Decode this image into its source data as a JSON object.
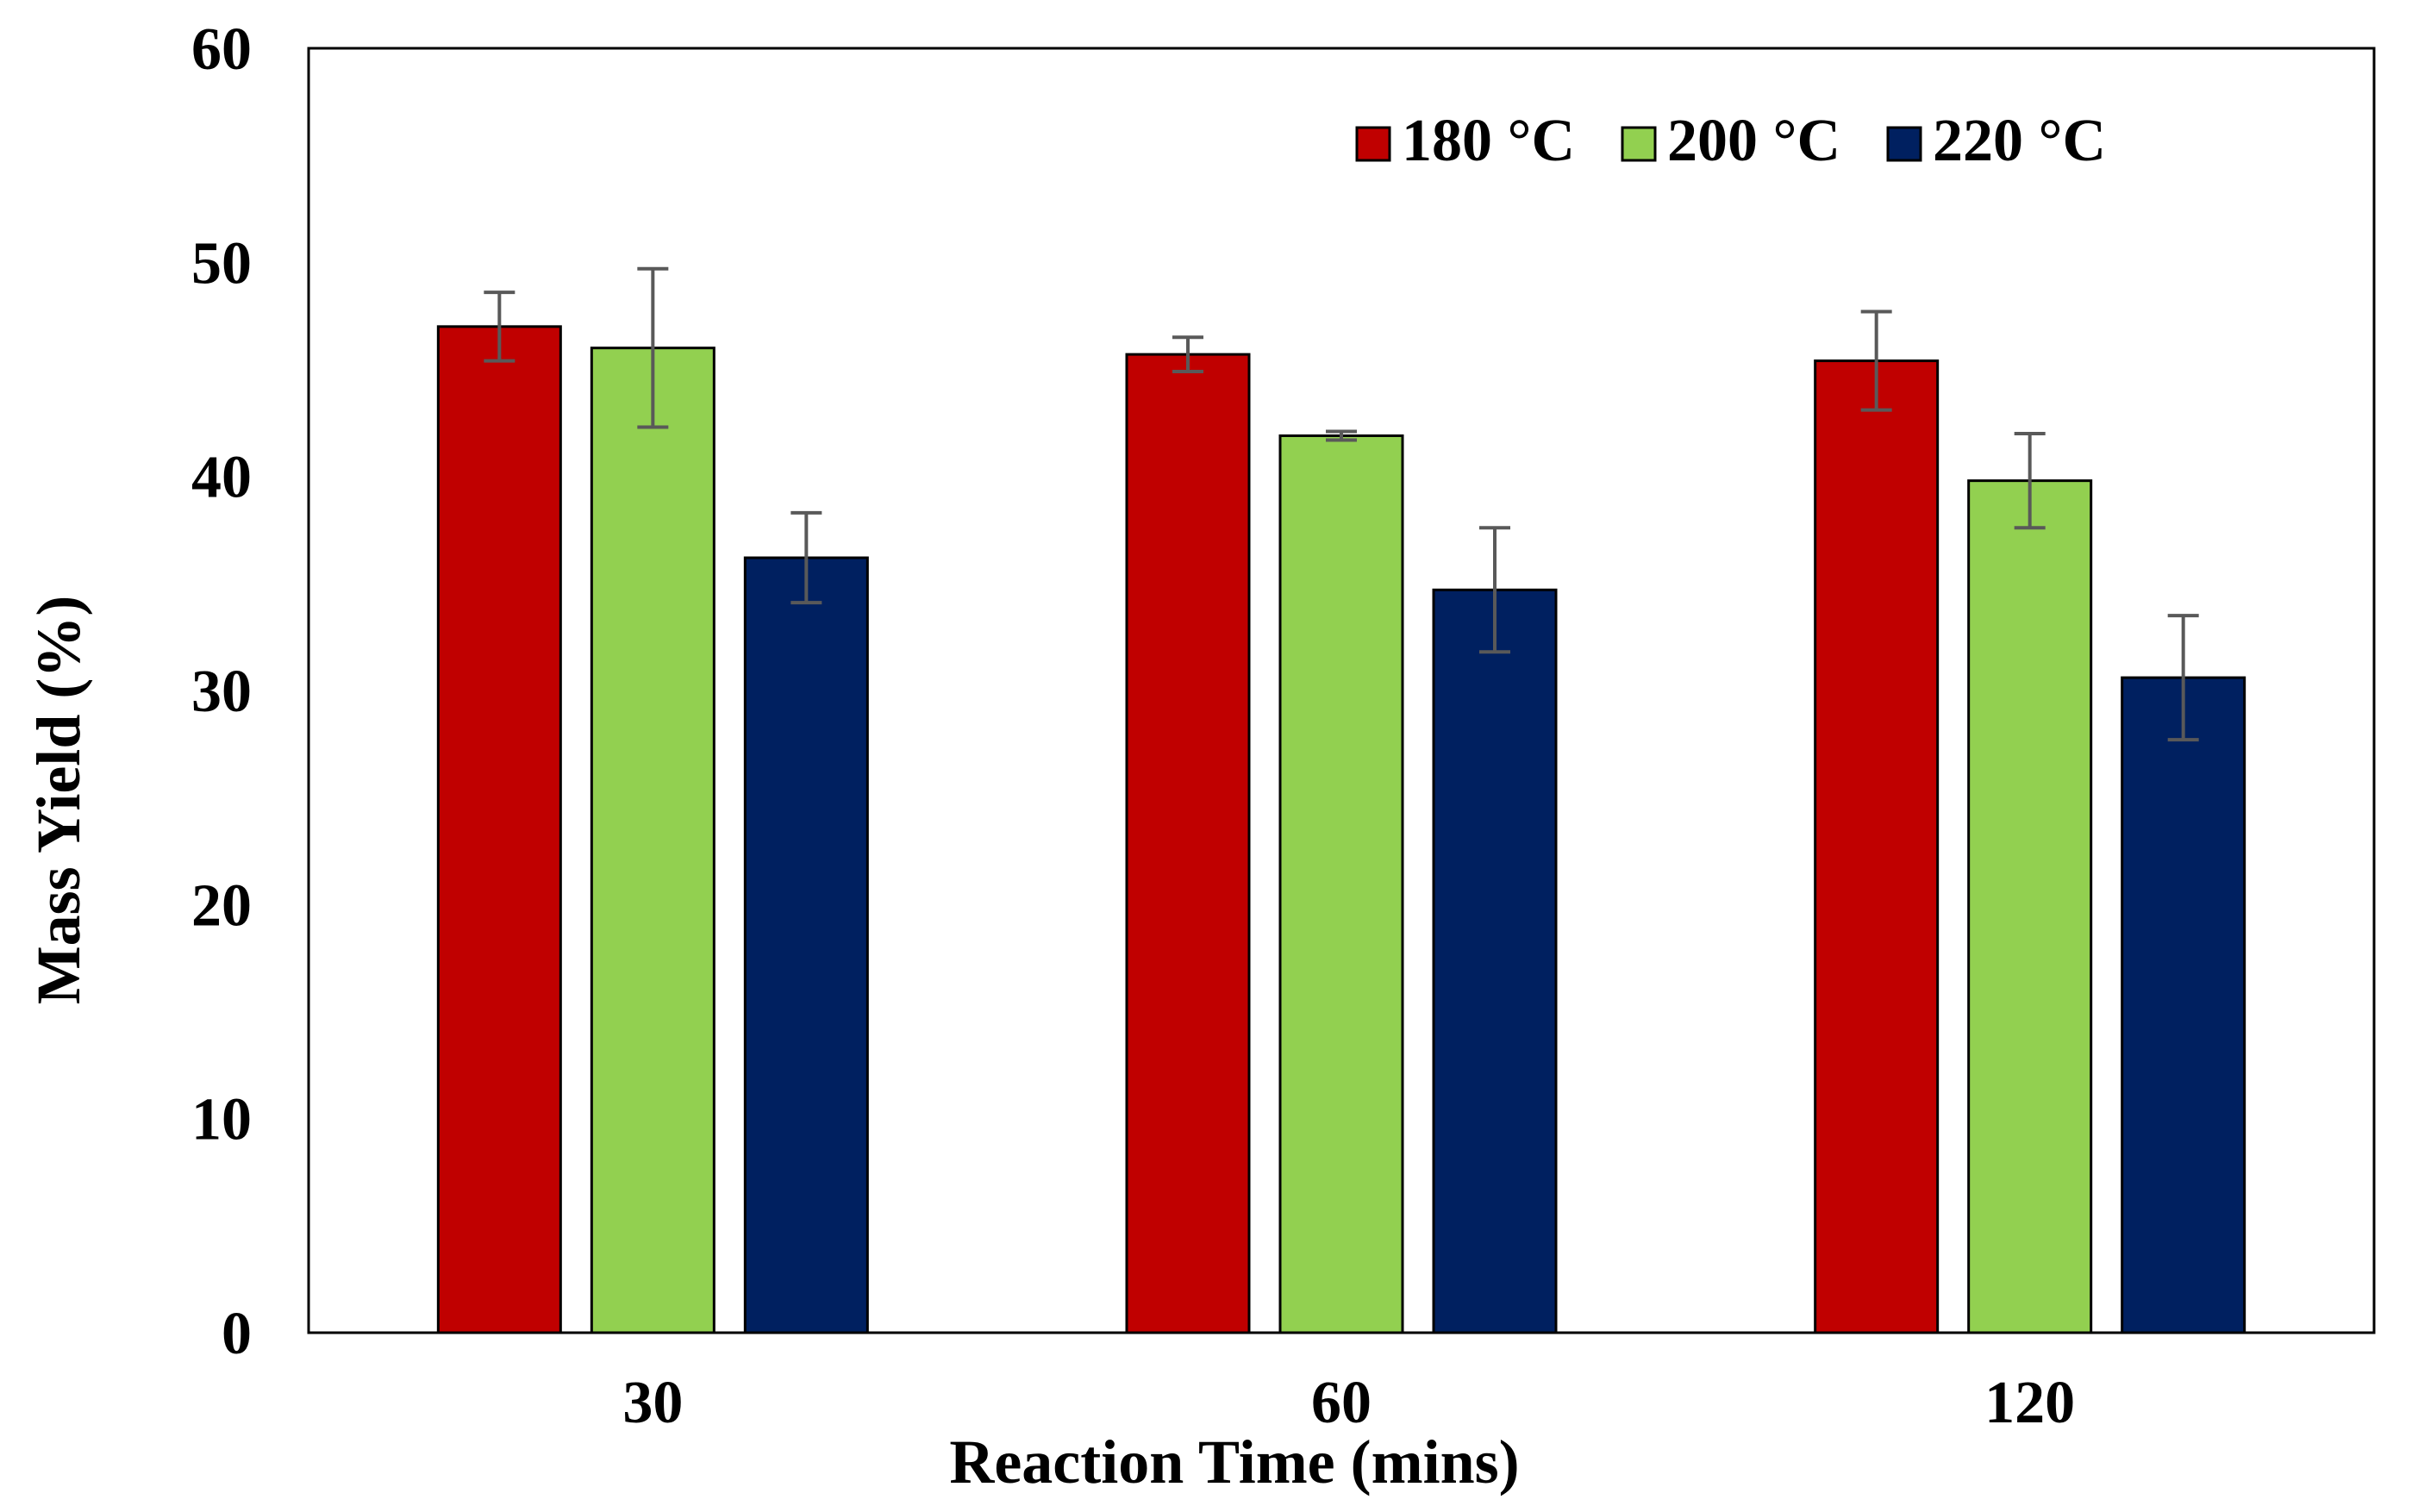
{
  "chart_data": {
    "type": "bar",
    "title": "",
    "xlabel": "Reaction Time (mins)",
    "ylabel": "Mass Yield (%)",
    "ylim": [
      0,
      60
    ],
    "yticks": [
      "0",
      "10",
      "20",
      "30",
      "40",
      "50",
      "60"
    ],
    "categories": [
      "30",
      "60",
      "120"
    ],
    "legend_position": "top-right",
    "grid": false,
    "series": [
      {
        "name": "180 °C",
        "color": "#C00000",
        "values": [
          47.0,
          45.7,
          45.4
        ],
        "errors": [
          1.6,
          0.8,
          2.3
        ]
      },
      {
        "name": "200 °C",
        "color": "#92D050",
        "values": [
          46.0,
          41.9,
          39.8
        ],
        "errors": [
          3.7,
          0.2,
          2.2
        ]
      },
      {
        "name": "220 °C",
        "color": "#002060",
        "values": [
          36.2,
          34.7,
          30.6
        ],
        "errors": [
          2.1,
          2.9,
          2.9
        ]
      }
    ]
  }
}
